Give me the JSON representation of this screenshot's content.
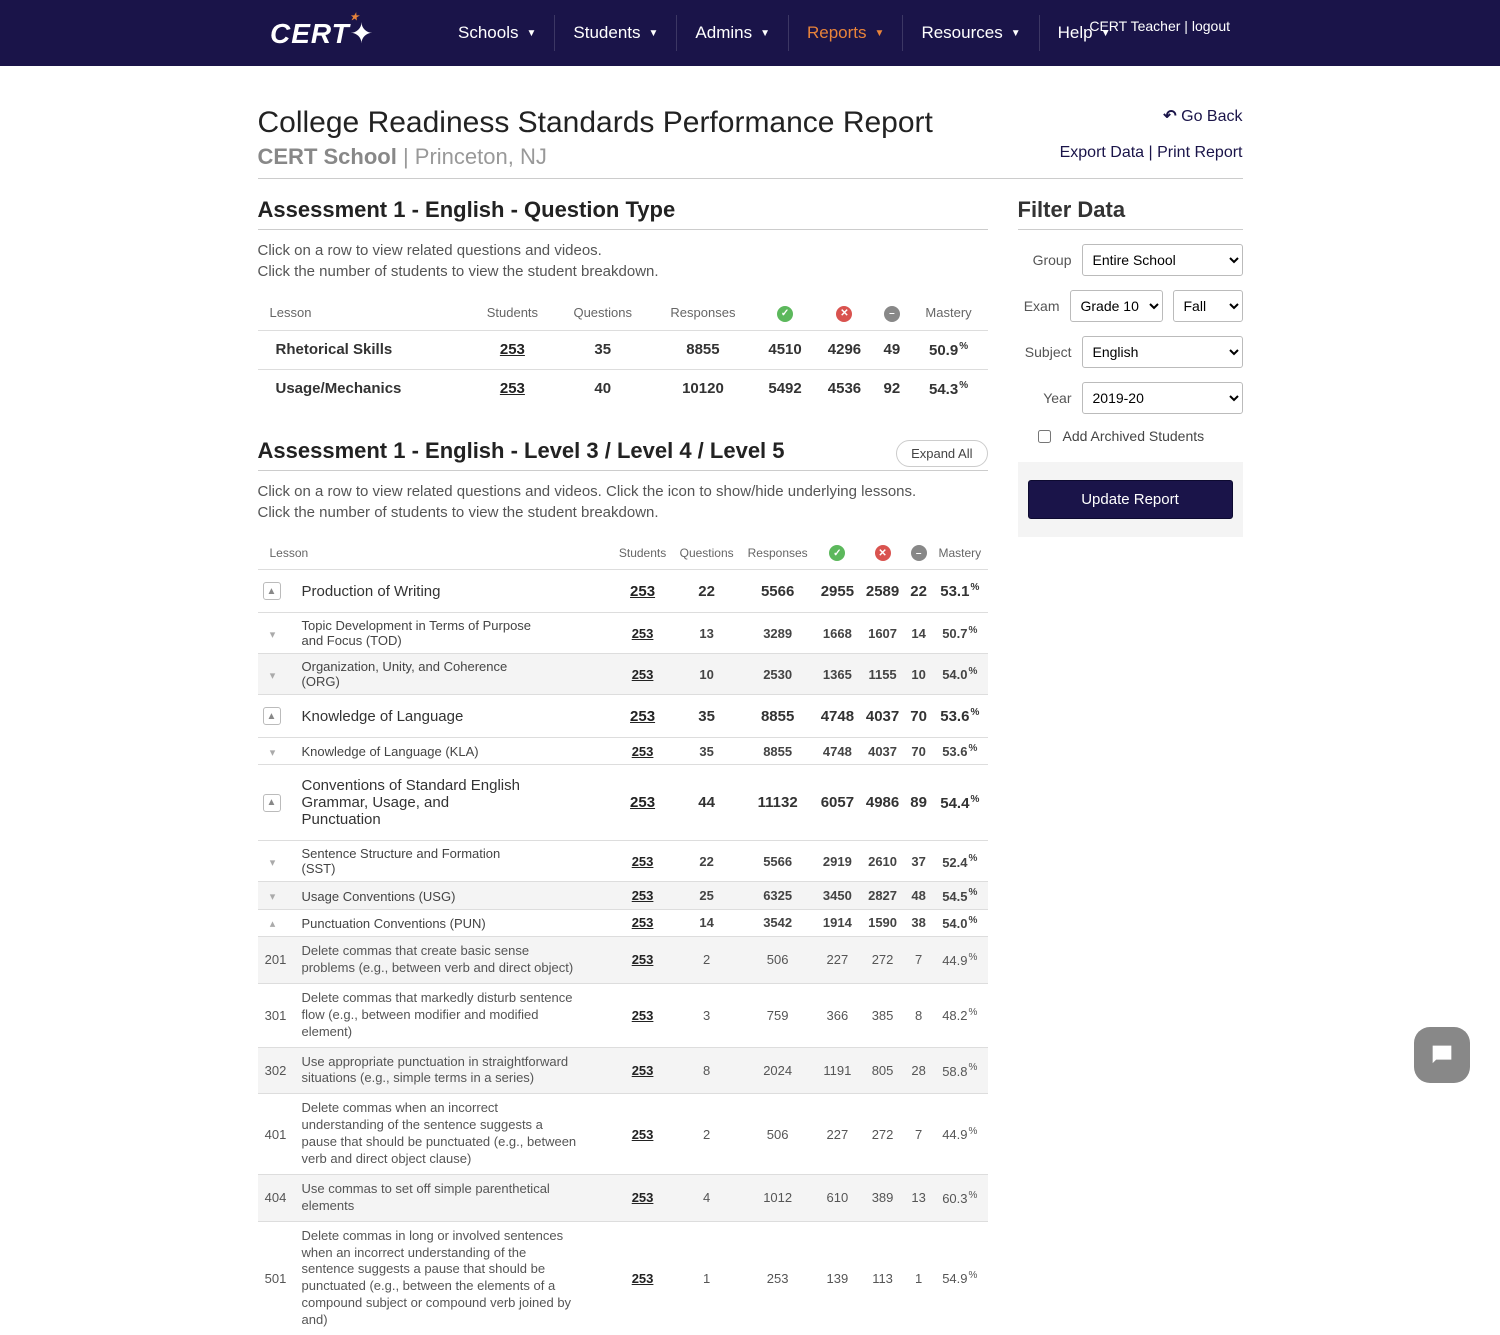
{
  "nav": {
    "logo": "CERT",
    "items": [
      "Schools",
      "Students",
      "Admins",
      "Reports",
      "Resources",
      "Help"
    ],
    "active_index": 3,
    "user_label": "CERT Teacher",
    "logout_label": "logout"
  },
  "header": {
    "title": "College Readiness Standards Performance Report",
    "school": "CERT School",
    "location": "Princeton, NJ",
    "go_back": "Go Back",
    "export": "Export Data",
    "print": "Print Report"
  },
  "section1": {
    "title": "Assessment 1 - English - Question Type",
    "hint1": "Click on a row to view related questions and videos.",
    "hint2": "Click the number of students to view the student breakdown.",
    "cols": [
      "Lesson",
      "Students",
      "Questions",
      "Responses",
      "",
      "",
      "",
      "Mastery"
    ],
    "rows": [
      {
        "lesson": "Rhetorical Skills",
        "students": "253",
        "questions": "35",
        "responses": "8855",
        "correct": "4510",
        "incorrect": "4296",
        "skip": "49",
        "mastery": "50.9"
      },
      {
        "lesson": "Usage/Mechanics",
        "students": "253",
        "questions": "40",
        "responses": "10120",
        "correct": "5492",
        "incorrect": "4536",
        "skip": "92",
        "mastery": "54.3"
      }
    ]
  },
  "section2": {
    "title": "Assessment 1 - English - Level 3 / Level 4 / Level 5",
    "expand": "Expand All",
    "hint1": "Click on a row to view related questions and videos. Click the icon to show/hide underlying lessons.",
    "hint2": "Click the number of students to view the student breakdown.",
    "cols": [
      "Lesson",
      "Students",
      "Questions",
      "Responses",
      "",
      "",
      "",
      "Mastery"
    ],
    "rows": [
      {
        "level": 0,
        "code": "",
        "chev": "box",
        "lesson": "Production of Writing",
        "s": "253",
        "q": "22",
        "r": "5566",
        "c": "2955",
        "i": "2589",
        "sk": "22",
        "m": "53.1"
      },
      {
        "level": 1,
        "code": "",
        "chev": "down",
        "lesson": "Topic Development in Terms of Purpose and Focus (TOD)",
        "s": "253",
        "q": "13",
        "r": "3289",
        "c": "1668",
        "i": "1607",
        "sk": "14",
        "m": "50.7"
      },
      {
        "level": 1,
        "code": "",
        "chev": "down",
        "alt": true,
        "lesson": "Organization, Unity, and Coherence (ORG)",
        "s": "253",
        "q": "10",
        "r": "2530",
        "c": "1365",
        "i": "1155",
        "sk": "10",
        "m": "54.0"
      },
      {
        "level": 0,
        "code": "",
        "chev": "box",
        "lesson": "Knowledge of Language",
        "s": "253",
        "q": "35",
        "r": "8855",
        "c": "4748",
        "i": "4037",
        "sk": "70",
        "m": "53.6"
      },
      {
        "level": 1,
        "code": "",
        "chev": "down",
        "lesson": "Knowledge of Language (KLA)",
        "s": "253",
        "q": "35",
        "r": "8855",
        "c": "4748",
        "i": "4037",
        "sk": "70",
        "m": "53.6"
      },
      {
        "level": 0,
        "code": "",
        "chev": "box",
        "lesson": "Conventions of Standard English Grammar, Usage, and Punctuation",
        "s": "253",
        "q": "44",
        "r": "11132",
        "c": "6057",
        "i": "4986",
        "sk": "89",
        "m": "54.4"
      },
      {
        "level": 1,
        "code": "",
        "chev": "down",
        "lesson": "Sentence Structure and Formation (SST)",
        "s": "253",
        "q": "22",
        "r": "5566",
        "c": "2919",
        "i": "2610",
        "sk": "37",
        "m": "52.4"
      },
      {
        "level": 1,
        "code": "",
        "chev": "down",
        "alt": true,
        "lesson": "Usage Conventions (USG)",
        "s": "253",
        "q": "25",
        "r": "6325",
        "c": "3450",
        "i": "2827",
        "sk": "48",
        "m": "54.5"
      },
      {
        "level": 1,
        "code": "",
        "chev": "up",
        "lesson": "Punctuation Conventions (PUN)",
        "s": "253",
        "q": "14",
        "r": "3542",
        "c": "1914",
        "i": "1590",
        "sk": "38",
        "m": "54.0"
      },
      {
        "level": 2,
        "code": "201",
        "lesson": "Delete commas that create basic sense problems (e.g., between verb and direct object)",
        "s": "253",
        "q": "2",
        "r": "506",
        "c": "227",
        "i": "272",
        "sk": "7",
        "m": "44.9",
        "alt": true
      },
      {
        "level": 2,
        "code": "301",
        "lesson": "Delete commas that markedly disturb sentence flow (e.g., between modifier and modified element)",
        "s": "253",
        "q": "3",
        "r": "759",
        "c": "366",
        "i": "385",
        "sk": "8",
        "m": "48.2"
      },
      {
        "level": 2,
        "code": "302",
        "lesson": "Use appropriate punctuation in straightforward situations (e.g., simple terms in a series)",
        "s": "253",
        "q": "8",
        "r": "2024",
        "c": "1191",
        "i": "805",
        "sk": "28",
        "m": "58.8",
        "alt": true
      },
      {
        "level": 2,
        "code": "401",
        "lesson": "Delete commas when an incorrect understanding of the sentence suggests a pause that should be punctuated (e.g., between verb and direct object clause)",
        "s": "253",
        "q": "2",
        "r": "506",
        "c": "227",
        "i": "272",
        "sk": "7",
        "m": "44.9"
      },
      {
        "level": 2,
        "code": "404",
        "lesson": "Use commas to set off simple parenthetical elements",
        "s": "253",
        "q": "4",
        "r": "1012",
        "c": "610",
        "i": "389",
        "sk": "13",
        "m": "60.3",
        "alt": true
      },
      {
        "level": 2,
        "code": "501",
        "lesson": "Delete commas in long or involved sentences when an incorrect understanding of the sentence suggests a pause that should be punctuated (e.g., between the elements of a compound subject or compound verb joined by and)",
        "s": "253",
        "q": "1",
        "r": "253",
        "c": "139",
        "i": "113",
        "sk": "1",
        "m": "54.9"
      }
    ]
  },
  "filter": {
    "title": "Filter Data",
    "group_label": "Group",
    "group_value": "Entire School",
    "exam_label": "Exam",
    "exam_value": "Grade 10",
    "exam_term": "Fall",
    "subject_label": "Subject",
    "subject_value": "English",
    "year_label": "Year",
    "year_value": "2019-20",
    "archive_label": "Add Archived Students",
    "update_label": "Update Report"
  }
}
